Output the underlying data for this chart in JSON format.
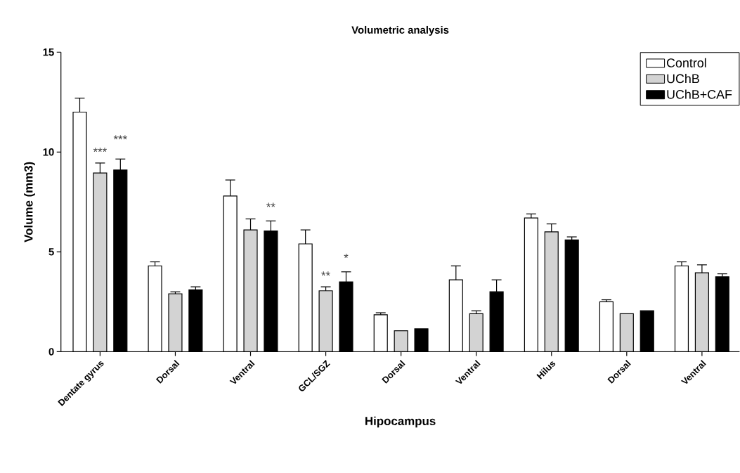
{
  "chart_data": {
    "type": "bar",
    "title": "Volumetric analysis",
    "xlabel": "Hipocampus",
    "ylabel": "Volume (mm3)",
    "categories": [
      "Dentate gyrus",
      "Dorsal",
      "Ventral",
      "GCL/SGZ",
      "Dorsal",
      "Ventral",
      "Hilus",
      "Dorsal",
      "Ventral"
    ],
    "series": [
      {
        "name": "Control",
        "color": "#ffffff",
        "values": [
          12.0,
          4.3,
          7.8,
          5.4,
          1.85,
          3.6,
          6.7,
          2.5,
          4.3
        ],
        "errors": [
          0.7,
          0.2,
          0.8,
          0.7,
          0.1,
          0.7,
          0.2,
          0.1,
          0.2
        ]
      },
      {
        "name": "UChB",
        "color": "#d3d3d3",
        "values": [
          8.95,
          2.9,
          6.1,
          3.05,
          1.05,
          1.9,
          6.0,
          1.9,
          3.95
        ],
        "errors": [
          0.5,
          0.1,
          0.55,
          0.2,
          null,
          0.15,
          0.4,
          null,
          0.4
        ]
      },
      {
        "name": "UChB+CAF",
        "color": "#000000",
        "values": [
          9.1,
          3.1,
          6.05,
          3.5,
          1.15,
          3.0,
          5.6,
          2.05,
          3.75
        ],
        "errors": [
          0.55,
          0.15,
          0.5,
          0.5,
          null,
          0.6,
          0.15,
          null,
          0.15
        ]
      }
    ],
    "ylim": [
      0,
      15
    ],
    "yticks": [
      0,
      5,
      10,
      15
    ],
    "legend": "top right",
    "annotations": [
      "***",
      "***",
      "**",
      "**",
      "*"
    ]
  }
}
